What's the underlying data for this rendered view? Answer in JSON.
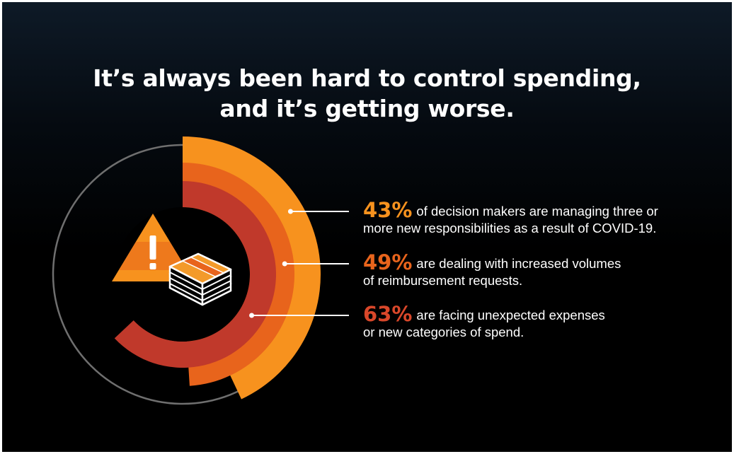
{
  "title": {
    "line1": "It’s always been hard to control spending,",
    "line2": "and it’s getting worse."
  },
  "colors": {
    "outer": "#f7921e",
    "middle": "#e8641c",
    "inner": "#c0392b",
    "ring": "#6f6f6f",
    "text": "#ffffff"
  },
  "chart_data": {
    "type": "radial-bar",
    "unit": "%",
    "max": 100,
    "series": [
      {
        "value": 43,
        "value_label": "43%",
        "text_line1": "of decision makers are managing three or",
        "text_line2": "more new responsibilities as a result of COVID-19.",
        "color": "#f7921e"
      },
      {
        "value": 49,
        "value_label": "49%",
        "text_line1": "are dealing with increased volumes",
        "text_line2": "of reimbursement requests.",
        "color": "#e8641c"
      },
      {
        "value": 63,
        "value_label": "63%",
        "text_line1": "are facing unexpected expenses",
        "text_line2": "or new categories of spend.",
        "color": "#c0392b"
      }
    ]
  },
  "icons": [
    "warning-icon",
    "money-stack-icon"
  ]
}
